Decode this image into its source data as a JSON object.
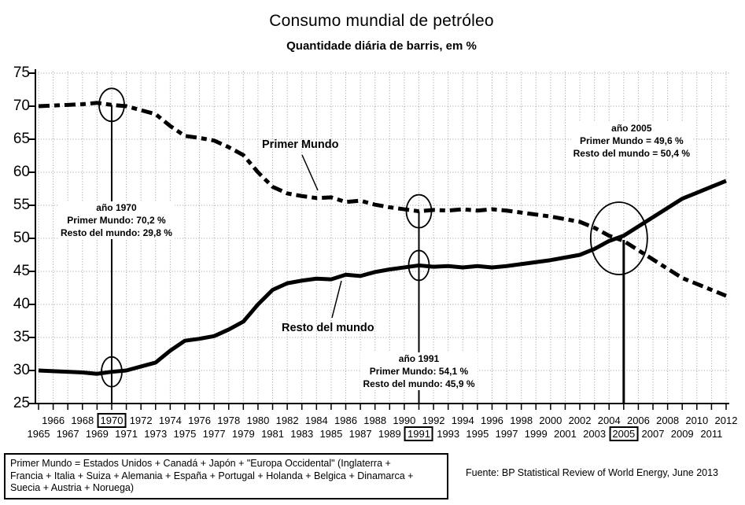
{
  "colors": {
    "line": "#000000",
    "grid": "#9b9b9b",
    "background": "#ffffff",
    "text": "#000000"
  },
  "footer": {
    "legend_lines": [
      "Primer Mundo = Estados Unidos + Canadá + Japón + \"Europa Occidental\" (Inglaterra +",
      "Francia + Italia + Suiza + Alemania + España + Portugal + Holanda + Belgica + Dinamarca +",
      "Suecia + Austria + Noruega)"
    ],
    "source": "Fuente: BP Statistical Review of World Energy, June 2013"
  },
  "chart_data": {
    "type": "line",
    "title": "Consumo mundial de petróleo",
    "subtitle": "Quantidade diária de barris, em %",
    "xlabel": "",
    "ylabel": "",
    "ylim": [
      25,
      75
    ],
    "yticks": [
      25,
      30,
      35,
      40,
      45,
      50,
      55,
      60,
      65,
      70,
      75
    ],
    "grid": true,
    "legend_position": "inline-curve-labels",
    "x": [
      1965,
      1966,
      1967,
      1968,
      1969,
      1970,
      1971,
      1972,
      1973,
      1974,
      1975,
      1976,
      1977,
      1978,
      1979,
      1980,
      1981,
      1982,
      1983,
      1984,
      1985,
      1986,
      1987,
      1988,
      1989,
      1990,
      1991,
      1992,
      1993,
      1994,
      1995,
      1996,
      1997,
      1998,
      1999,
      2000,
      2001,
      2002,
      2003,
      2004,
      2005,
      2006,
      2007,
      2008,
      2009,
      2010,
      2011,
      2012
    ],
    "series": [
      {
        "name": "Primer Mundo",
        "style": "dashed",
        "values": [
          70.0,
          70.1,
          70.2,
          70.3,
          70.5,
          70.2,
          70.0,
          69.4,
          68.8,
          67.0,
          65.5,
          65.2,
          64.8,
          63.8,
          62.6,
          60.0,
          57.8,
          56.8,
          56.4,
          56.1,
          56.2,
          55.5,
          55.7,
          55.1,
          54.7,
          54.4,
          54.1,
          54.3,
          54.2,
          54.4,
          54.2,
          54.4,
          54.2,
          53.9,
          53.6,
          53.3,
          52.9,
          52.5,
          51.6,
          50.4,
          49.6,
          48.2,
          46.8,
          45.4,
          44.0,
          43.1,
          42.2,
          41.3
        ]
      },
      {
        "name": "Resto del mundo",
        "style": "solid",
        "values": [
          30.0,
          29.9,
          29.8,
          29.7,
          29.5,
          29.8,
          30.0,
          30.6,
          31.2,
          33.0,
          34.5,
          34.8,
          35.2,
          36.2,
          37.4,
          40.0,
          42.2,
          43.2,
          43.6,
          43.9,
          43.8,
          44.5,
          44.3,
          44.9,
          45.3,
          45.6,
          45.9,
          45.7,
          45.8,
          45.6,
          45.8,
          45.6,
          45.8,
          46.1,
          46.4,
          46.7,
          47.1,
          47.5,
          48.4,
          49.6,
          50.4,
          51.8,
          53.2,
          54.6,
          56.0,
          56.9,
          57.8,
          58.7
        ]
      }
    ],
    "x_axis_rows": {
      "top": [
        1966,
        1968,
        1970,
        1972,
        1974,
        1976,
        1978,
        1980,
        1982,
        1984,
        1986,
        1988,
        1990,
        1992,
        1994,
        1996,
        1998,
        2000,
        2002,
        2004,
        2006,
        2008,
        2010,
        2012
      ],
      "bottom": [
        1965,
        1967,
        1969,
        1971,
        1973,
        1975,
        1977,
        1979,
        1981,
        1983,
        1985,
        1987,
        1989,
        1991,
        1993,
        1995,
        1997,
        1999,
        2001,
        2003,
        2005,
        2007,
        2009,
        2011
      ],
      "boxed": [
        1970,
        1991,
        2005
      ]
    },
    "annotations": [
      {
        "year": 1970,
        "circle": "both",
        "lines": [
          "año 1970",
          "Primer Mundo: 70,2 %",
          "Resto del mundo: 29,8 %"
        ]
      },
      {
        "year": 1991,
        "circle": "both",
        "lines": [
          "año 1991",
          "Primer Mundo: 54,1 %",
          "Resto del mundo: 45,9 %"
        ]
      },
      {
        "year": 2005,
        "circle": "crossing",
        "lines": [
          "año 2005",
          "Primer Mundo = 49,6 %",
          "Resto del mundo = 50,4 %"
        ]
      }
    ]
  }
}
